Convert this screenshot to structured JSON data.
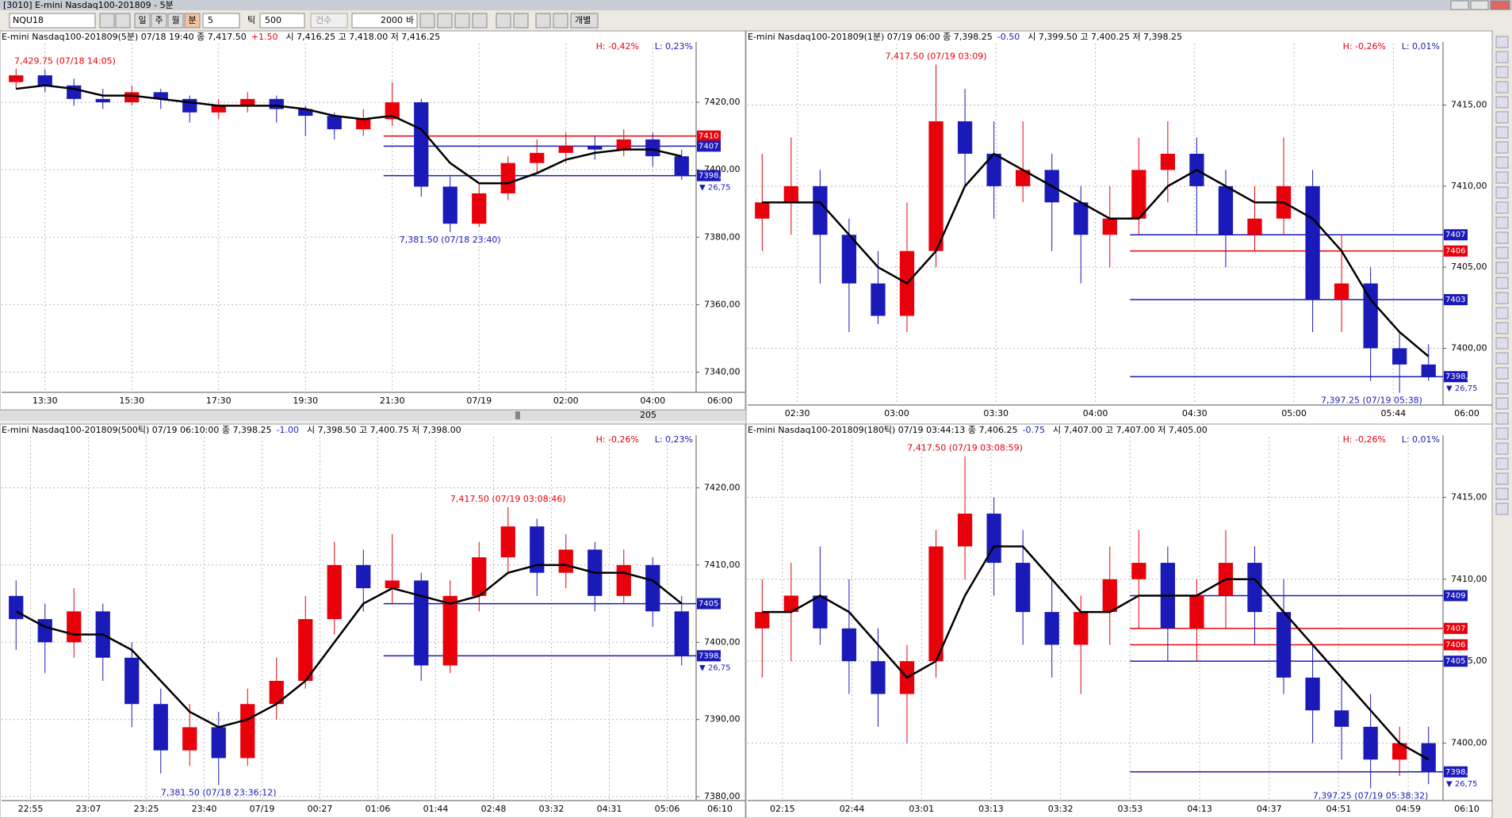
{
  "window": {
    "title": "[3010] E-mini Nasdaq100-201809 - 5분"
  },
  "toolbar": {
    "symbol": "NQU18",
    "periods": [
      "일",
      "주",
      "월",
      "분"
    ],
    "minutes": "5",
    "tick_label": "틱",
    "ticks": "500",
    "count_label": "건수",
    "count": "2000",
    "bar_label": "바",
    "individual": "개별"
  },
  "scroll": {
    "value": "205"
  },
  "chart_data": [
    {
      "type": "candlestick",
      "title": "E-mini Nasdaq100-201809(5분) 07/18 19:40  종 7,417.50",
      "change": "+1.50",
      "ohlc": "시 7,416.25 고 7,418.00 저 7,416.25",
      "h_label": "H: -0,42%",
      "l_label": "L: 0,23%",
      "xlabels": [
        "13:30",
        "15:30",
        "17:30",
        "19:30",
        "21:30",
        "07/19",
        "02:00",
        "04:00"
      ],
      "x_end": "06:00",
      "ylim": [
        7334,
        7436
      ],
      "yticks": [
        {
          "value": 7420,
          "label": "7420,00"
        },
        {
          "value": 7400,
          "label": "7400,00"
        },
        {
          "value": 7380,
          "label": "7380,00"
        },
        {
          "value": 7360,
          "label": "7360,00"
        },
        {
          "value": 7340,
          "label": "7340,00"
        }
      ],
      "up_color": "#e8000b",
      "down_color": "#1a1ab8",
      "ma_color": "#000000",
      "open": [
        7426,
        7428,
        7425,
        7421,
        7420,
        7423,
        7421,
        7417,
        7419,
        7421,
        7418,
        7416,
        7412,
        7415,
        7420,
        7395,
        7384,
        7393,
        7402,
        7405,
        7407,
        7406,
        7409,
        7404
      ],
      "high": [
        7430,
        7429.75,
        7427,
        7424,
        7425,
        7424,
        7422,
        7421,
        7423,
        7422,
        7419,
        7417,
        7418,
        7426,
        7421,
        7398,
        7396,
        7404,
        7409,
        7411,
        7410,
        7412,
        7411,
        7406
      ],
      "low": [
        7424,
        7423,
        7419,
        7418,
        7419,
        7418,
        7414,
        7415,
        7417,
        7414,
        7410,
        7409,
        7410,
        7413,
        7392,
        7381.5,
        7383,
        7391,
        7399,
        7402,
        7403,
        7404,
        7401,
        7397
      ],
      "close": [
        7428,
        7425,
        7421,
        7420,
        7423,
        7421,
        7417,
        7419,
        7421,
        7418,
        7416,
        7412,
        7415,
        7420,
        7395,
        7384,
        7393,
        7402,
        7405,
        7407,
        7406,
        7409,
        7404,
        7398.25
      ],
      "ma": [
        7424,
        7425,
        7424,
        7422,
        7422,
        7421,
        7420,
        7419,
        7419,
        7419,
        7418,
        7416,
        7415,
        7416,
        7412,
        7402,
        7396,
        7396,
        7399,
        7403,
        7405,
        7406,
        7406,
        7404
      ],
      "annotations": [
        {
          "text": "7,429.75 (07/18 14:05)",
          "value": 7429.75
        },
        {
          "text": "7,381.50 (07/18 23:40)",
          "value": 7381.5
        }
      ],
      "price_labels": [
        {
          "value": 7410,
          "label": "7410",
          "color": "#e8000b"
        },
        {
          "value": 7407,
          "label": "7407",
          "color": "#1a1ab8"
        },
        {
          "value": 7398.25,
          "label": "7398,25",
          "color": "#1a1ab8"
        }
      ],
      "change_label": "▼ 26,75"
    },
    {
      "type": "candlestick",
      "title": "E-mini Nasdaq100-201809(1분) 07/19 06:00  종 7,398.25",
      "change": "-0.50",
      "ohlc": "시 7,399.50 고 7,400.25 저 7,398.25",
      "h_label": "H: -0,26%",
      "l_label": "L: 0,01%",
      "xlabels": [
        "02:30",
        "03:00",
        "03:30",
        "04:00",
        "04:30",
        "05:00",
        "05:44"
      ],
      "x_end": "06:00",
      "ylim": [
        7396.5,
        7418.5
      ],
      "yticks": [
        {
          "value": 7415,
          "label": "7415,00"
        },
        {
          "value": 7410,
          "label": "7410,00"
        },
        {
          "value": 7405,
          "label": "7405,00"
        },
        {
          "value": 7400,
          "label": "7400,00"
        }
      ],
      "up_color": "#e8000b",
      "down_color": "#1a1ab8",
      "ma_color": "#000000",
      "open": [
        7408,
        7409,
        7410,
        7407,
        7404,
        7402,
        7406,
        7414,
        7412,
        7410,
        7411,
        7409,
        7407,
        7408,
        7411,
        7412,
        7410,
        7407,
        7408,
        7410,
        7403,
        7404,
        7400,
        7399
      ],
      "high": [
        7412,
        7413,
        7411,
        7408,
        7406,
        7409,
        7417.5,
        7416,
        7414,
        7414,
        7412,
        7410,
        7410,
        7413,
        7414,
        7413,
        7411,
        7410,
        7413,
        7411,
        7407,
        7405,
        7401,
        7400.25
      ],
      "low": [
        7406,
        7407,
        7404,
        7401,
        7401.5,
        7401,
        7405,
        7410,
        7408,
        7409,
        7406,
        7404,
        7405,
        7407,
        7409,
        7407,
        7405,
        7406,
        7407,
        7401,
        7401,
        7398,
        7397.25,
        7398
      ],
      "close": [
        7409,
        7410,
        7407,
        7404,
        7402,
        7406,
        7414,
        7412,
        7410,
        7411,
        7409,
        7407,
        7408,
        7411,
        7412,
        7410,
        7407,
        7408,
        7410,
        7403,
        7404,
        7400,
        7399,
        7398.25
      ],
      "ma": [
        7409,
        7409,
        7409,
        7407,
        7405,
        7404,
        7406,
        7410,
        7412,
        7411,
        7410,
        7409,
        7408,
        7408,
        7410,
        7411,
        7410,
        7409,
        7409,
        7408,
        7406,
        7403,
        7401,
        7399.5
      ],
      "annotations": [
        {
          "text": "7,417.50 (07/19 03:09)",
          "value": 7417.5
        },
        {
          "text": "7,397.25 (07/19 05:38)",
          "value": 7397.25
        }
      ],
      "price_labels": [
        {
          "value": 7407,
          "label": "7407",
          "color": "#1a1ab8"
        },
        {
          "value": 7406,
          "label": "7406",
          "color": "#e8000b"
        },
        {
          "value": 7403,
          "label": "7403",
          "color": "#1a1ab8"
        },
        {
          "value": 7398.25,
          "label": "7398,25",
          "color": "#1a1ab8"
        }
      ],
      "change_label": "▼ 26,75"
    },
    {
      "type": "candlestick",
      "title": "E-mini Nasdaq100-201809(500틱) 07/19 06:10:00  종 7,398.25",
      "change": "-1.00",
      "ohlc": "시 7,398.50 고 7,400.75 저 7,398.00",
      "h_label": "H: -0,26%",
      "l_label": "L: 0,23%",
      "xlabels": [
        "22:55",
        "23:07",
        "23:25",
        "23:40",
        "07/19",
        "00:27",
        "01:06",
        "01:44",
        "02:48",
        "03:32",
        "04:31",
        "05:06"
      ],
      "x_end": "06:10",
      "ylim": [
        7379.5,
        7426
      ],
      "yticks": [
        {
          "value": 7420,
          "label": "7420,00"
        },
        {
          "value": 7410,
          "label": "7410,00"
        },
        {
          "value": 7400,
          "label": "7400,00"
        },
        {
          "value": 7390,
          "label": "7390,00"
        },
        {
          "value": 7380,
          "label": "7380,00"
        }
      ],
      "up_color": "#e8000b",
      "down_color": "#1a1ab8",
      "ma_color": "#000000",
      "open": [
        7406,
        7403,
        7400,
        7404,
        7398,
        7392,
        7386,
        7389,
        7385,
        7392,
        7395,
        7403,
        7410,
        7407,
        7408,
        7397,
        7406,
        7411,
        7415,
        7409,
        7412,
        7406,
        7410,
        7404
      ],
      "high": [
        7408,
        7405,
        7407,
        7405,
        7400,
        7394,
        7392,
        7391,
        7394,
        7398,
        7406,
        7413,
        7412,
        7414,
        7409,
        7408,
        7413,
        7417.5,
        7416,
        7414,
        7413,
        7412,
        7411,
        7406
      ],
      "low": [
        7399,
        7396,
        7398,
        7395,
        7389,
        7383,
        7384,
        7381.5,
        7384,
        7390,
        7394,
        7401,
        7404,
        7405,
        7395,
        7396,
        7404,
        7409,
        7406,
        7407,
        7404,
        7405,
        7402,
        7397
      ],
      "close": [
        7403,
        7400,
        7404,
        7398,
        7392,
        7386,
        7389,
        7385,
        7392,
        7395,
        7403,
        7410,
        7407,
        7408,
        7397,
        7406,
        7411,
        7415,
        7409,
        7412,
        7406,
        7410,
        7404,
        7398.25
      ],
      "ma": [
        7404,
        7402,
        7401,
        7401,
        7399,
        7395,
        7391,
        7389,
        7390,
        7392,
        7395,
        7400,
        7405,
        7407,
        7406,
        7405,
        7406,
        7409,
        7410,
        7410,
        7409,
        7409,
        7408,
        7405
      ],
      "annotations": [
        {
          "text": "7,417.50 (07/19 03:08:46)",
          "value": 7417.5
        },
        {
          "text": "7,381.50 (07/18 23:36:12)",
          "value": 7381.5
        }
      ],
      "price_labels": [
        {
          "value": 7405,
          "label": "7405",
          "color": "#1a1ab8"
        },
        {
          "value": 7398.25,
          "label": "7398,25",
          "color": "#1a1ab8"
        }
      ],
      "change_label": "▼ 26,75"
    },
    {
      "type": "candlestick",
      "title": "E-mini Nasdaq100-201809(180틱) 07/19 03:44:13  종 7,406.25",
      "change": "-0.75",
      "ohlc": "시 7,407.00 고 7,407.00 저 7,405.00",
      "h_label": "H: -0,26%",
      "l_label": "L: 0,01%",
      "xlabels": [
        "02:15",
        "02:44",
        "03:01",
        "03:13",
        "03:32",
        "03:53",
        "04:13",
        "04:37",
        "04:51",
        "04:59"
      ],
      "x_end": "06:10",
      "ylim": [
        7396.5,
        7418.4
      ],
      "yticks": [
        {
          "value": 7415,
          "label": "7415,00"
        },
        {
          "value": 7410,
          "label": "7410,00"
        },
        {
          "value": 7405,
          "label": "7405,00"
        },
        {
          "value": 7400,
          "label": "7400,00"
        }
      ],
      "up_color": "#e8000b",
      "down_color": "#1a1ab8",
      "ma_color": "#000000",
      "open": [
        7407,
        7408,
        7409,
        7407,
        7405,
        7403,
        7405,
        7412,
        7414,
        7411,
        7408,
        7406,
        7408,
        7410,
        7411,
        7407,
        7409,
        7411,
        7408,
        7404,
        7402,
        7401,
        7399,
        7400
      ],
      "high": [
        7410,
        7411,
        7412,
        7410,
        7407,
        7406,
        7413,
        7417.5,
        7415,
        7413,
        7410,
        7409,
        7412,
        7413,
        7412,
        7410,
        7413,
        7412,
        7410,
        7406,
        7404,
        7403,
        7401,
        7401
      ],
      "low": [
        7404,
        7405,
        7406,
        7403,
        7401,
        7400,
        7404,
        7410,
        7409,
        7406,
        7404,
        7403,
        7406,
        7407,
        7405,
        7405,
        7407,
        7406,
        7403,
        7400,
        7399,
        7397.25,
        7398,
        7397.5
      ],
      "close": [
        7408,
        7409,
        7407,
        7405,
        7403,
        7405,
        7412,
        7414,
        7411,
        7408,
        7406,
        7408,
        7410,
        7411,
        7407,
        7409,
        7411,
        7408,
        7404,
        7402,
        7401,
        7399,
        7400,
        7398.25
      ],
      "ma": [
        7408,
        7408,
        7409,
        7408,
        7406,
        7404,
        7405,
        7409,
        7412,
        7412,
        7410,
        7408,
        7408,
        7409,
        7409,
        7409,
        7410,
        7410,
        7408,
        7406,
        7404,
        7402,
        7400,
        7399
      ],
      "annotations": [
        {
          "text": "7,417.50 (07/19 03:08:59)",
          "value": 7417.5
        },
        {
          "text": "7,397.25 (07/19 05:38:32)",
          "value": 7397.25
        }
      ],
      "price_labels": [
        {
          "value": 7409,
          "label": "7409",
          "color": "#1a1ab8"
        },
        {
          "value": 7407,
          "label": "7407",
          "color": "#e8000b"
        },
        {
          "value": 7406,
          "label": "7406",
          "color": "#e8000b"
        },
        {
          "value": 7405,
          "label": "7405",
          "color": "#1a1ab8"
        },
        {
          "value": 7398.25,
          "label": "7398,25",
          "color": "#1a1ab8"
        }
      ],
      "change_label": "▼ 26,75"
    }
  ]
}
